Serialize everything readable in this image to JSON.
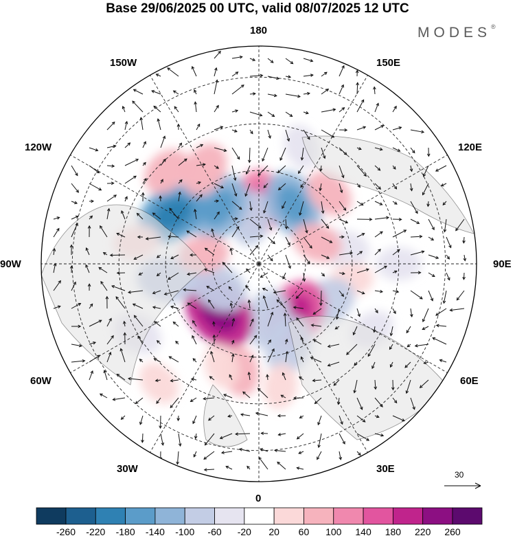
{
  "title": "Base 29/06/2025 00 UTC, valid 08/07/2025 12 UTC",
  "brand": "MODES",
  "brand_mark": "®",
  "longitude_labels": [
    "180",
    "150E",
    "120E",
    "90E",
    "60E",
    "30E",
    "0",
    "30W",
    "60W",
    "90W",
    "120W",
    "150W"
  ],
  "scale_arrow_label": "30",
  "colorbar": {
    "labels": [
      "-260",
      "-220",
      "-180",
      "-140",
      "-100",
      "-60",
      "-20",
      "20",
      "60",
      "100",
      "140",
      "180",
      "220",
      "260"
    ],
    "colors": [
      "#0f3b5f",
      "#1d5f8f",
      "#2f81b3",
      "#5b9cc9",
      "#8fb4d8",
      "#c3cde5",
      "#e6e4f0",
      "#ffffff",
      "#fbd9d9",
      "#f6b3bd",
      "#f088ae",
      "#e2559f",
      "#c0248c",
      "#8c0f82",
      "#5c0a6e"
    ]
  },
  "anomalies": [
    {
      "lat": 70,
      "lon": 180,
      "v": 120
    },
    {
      "lat": 75,
      "lon": -170,
      "v": -80
    },
    {
      "lat": 68,
      "lon": -145,
      "v": -140
    },
    {
      "lat": 58,
      "lon": -120,
      "v": -150
    },
    {
      "lat": 55,
      "lon": -150,
      "v": 80
    },
    {
      "lat": 48,
      "lon": -135,
      "v": 60
    },
    {
      "lat": 68,
      "lon": 150,
      "v": -140
    },
    {
      "lat": 58,
      "lon": 135,
      "v": 60
    },
    {
      "lat": 62,
      "lon": 100,
      "v": -60
    },
    {
      "lat": 70,
      "lon": 110,
      "v": 60
    },
    {
      "lat": 60,
      "lon": 80,
      "v": 40
    },
    {
      "lat": 65,
      "lon": 60,
      "v": -100
    },
    {
      "lat": 70,
      "lon": 35,
      "v": 160
    },
    {
      "lat": 72,
      "lon": 10,
      "v": -100
    },
    {
      "lat": 62,
      "lon": 20,
      "v": -100
    },
    {
      "lat": 70,
      "lon": -40,
      "v": 180
    },
    {
      "lat": 75,
      "lon": -60,
      "v": -100
    },
    {
      "lat": 60,
      "lon": -80,
      "v": -100
    },
    {
      "lat": 72,
      "lon": -100,
      "v": 60
    },
    {
      "lat": 50,
      "lon": -100,
      "v": 40
    },
    {
      "lat": 55,
      "lon": -10,
      "v": 60
    },
    {
      "lat": 50,
      "lon": 10,
      "v": 40
    },
    {
      "lat": 45,
      "lon": -60,
      "v": -60
    },
    {
      "lat": 40,
      "lon": -40,
      "v": 40
    },
    {
      "lat": 48,
      "lon": 60,
      "v": -40
    },
    {
      "lat": 45,
      "lon": 90,
      "v": -40
    },
    {
      "lat": 50,
      "lon": 160,
      "v": -40
    },
    {
      "lat": 55,
      "lon": -20,
      "v": 40
    }
  ]
}
